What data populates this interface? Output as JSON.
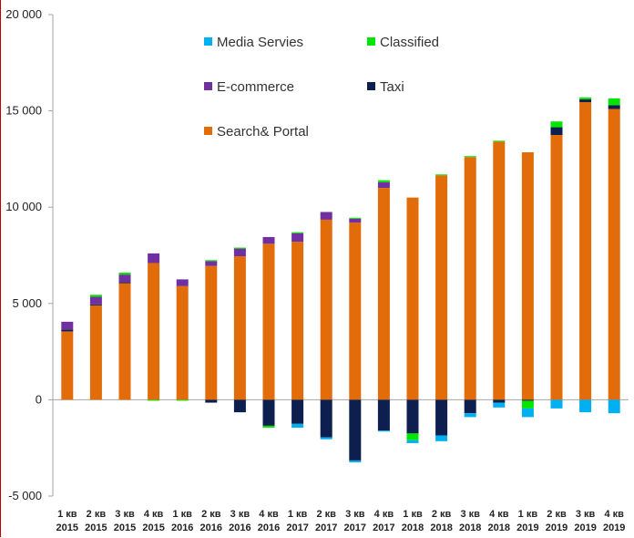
{
  "chart_data": {
    "type": "bar",
    "stacked": true,
    "title": "",
    "xlabel": "",
    "ylabel": "",
    "ylim": [
      -5000,
      20000
    ],
    "yticks": [
      -5000,
      0,
      5000,
      10000,
      15000,
      20000
    ],
    "ytick_labels": [
      "-5 000",
      "0",
      "5 000",
      "10 000",
      "15 000",
      "20 000"
    ],
    "grid": false,
    "legend_position": "top-left-inside",
    "categories": [
      {
        "line1": "1 кв",
        "line2": "2015"
      },
      {
        "line1": "2 кв",
        "line2": "2015"
      },
      {
        "line1": "3 кв",
        "line2": "2015"
      },
      {
        "line1": "4 кв",
        "line2": "2015"
      },
      {
        "line1": "1 кв",
        "line2": "2016"
      },
      {
        "line1": "2 кв",
        "line2": "2016"
      },
      {
        "line1": "3 кв",
        "line2": "2016"
      },
      {
        "line1": "4 кв",
        "line2": "2016"
      },
      {
        "line1": "1 кв",
        "line2": "2017"
      },
      {
        "line1": "2 кв",
        "line2": "2017"
      },
      {
        "line1": "3 кв",
        "line2": "2017"
      },
      {
        "line1": "4 кв",
        "line2": "2017"
      },
      {
        "line1": "1 кв",
        "line2": "2018"
      },
      {
        "line1": "2 кв",
        "line2": "2018"
      },
      {
        "line1": "3 кв",
        "line2": "2018"
      },
      {
        "line1": "4 кв",
        "line2": "2018"
      },
      {
        "line1": "1 кв",
        "line2": "2019"
      },
      {
        "line1": "2 кв",
        "line2": "2019"
      },
      {
        "line1": "3 кв",
        "line2": "2019"
      },
      {
        "line1": "4 кв",
        "line2": "2019"
      }
    ],
    "series": [
      {
        "name": "Search& Portal",
        "color": "#e36c0a",
        "values": [
          3550,
          4900,
          6050,
          7100,
          5900,
          6950,
          7450,
          8100,
          8200,
          9350,
          9200,
          11000,
          10500,
          11650,
          12600,
          13400,
          12850,
          13750,
          15450,
          15100
        ]
      },
      {
        "name": "Taxi",
        "color": "#0d1f4f",
        "values": [
          100,
          50,
          50,
          0,
          0,
          -150,
          -650,
          -1350,
          -1250,
          -1950,
          -3150,
          -1600,
          -1750,
          -1850,
          -700,
          -150,
          -50,
          400,
          150,
          200
        ]
      },
      {
        "name": "E-commerce",
        "color": "#7030a0",
        "values": [
          400,
          400,
          400,
          500,
          350,
          250,
          400,
          350,
          450,
          400,
          200,
          300,
          0,
          0,
          0,
          0,
          0,
          0,
          0,
          0
        ]
      },
      {
        "name": "Classified",
        "color": "#00e600",
        "values": [
          0,
          100,
          100,
          -50,
          -50,
          50,
          50,
          -100,
          50,
          0,
          50,
          100,
          -350,
          50,
          50,
          50,
          -400,
          300,
          100,
          350
        ]
      },
      {
        "name": "Media Servies",
        "color": "#00b0f0",
        "values": [
          0,
          0,
          0,
          0,
          0,
          0,
          0,
          0,
          -200,
          -100,
          -100,
          -50,
          -150,
          -300,
          -200,
          -250,
          -450,
          -450,
          -650,
          -700
        ]
      }
    ],
    "legend": [
      {
        "series": 4,
        "name": "Media Servies",
        "color": "#00b0f0"
      },
      {
        "series": 3,
        "name": "Classified",
        "color": "#00e600"
      },
      {
        "series": 2,
        "name": "E-commerce",
        "color": "#7030a0"
      },
      {
        "series": 1,
        "name": "Taxi",
        "color": "#0d1f4f"
      },
      {
        "series": 0,
        "name": "Search& Portal",
        "color": "#e36c0a"
      }
    ]
  }
}
